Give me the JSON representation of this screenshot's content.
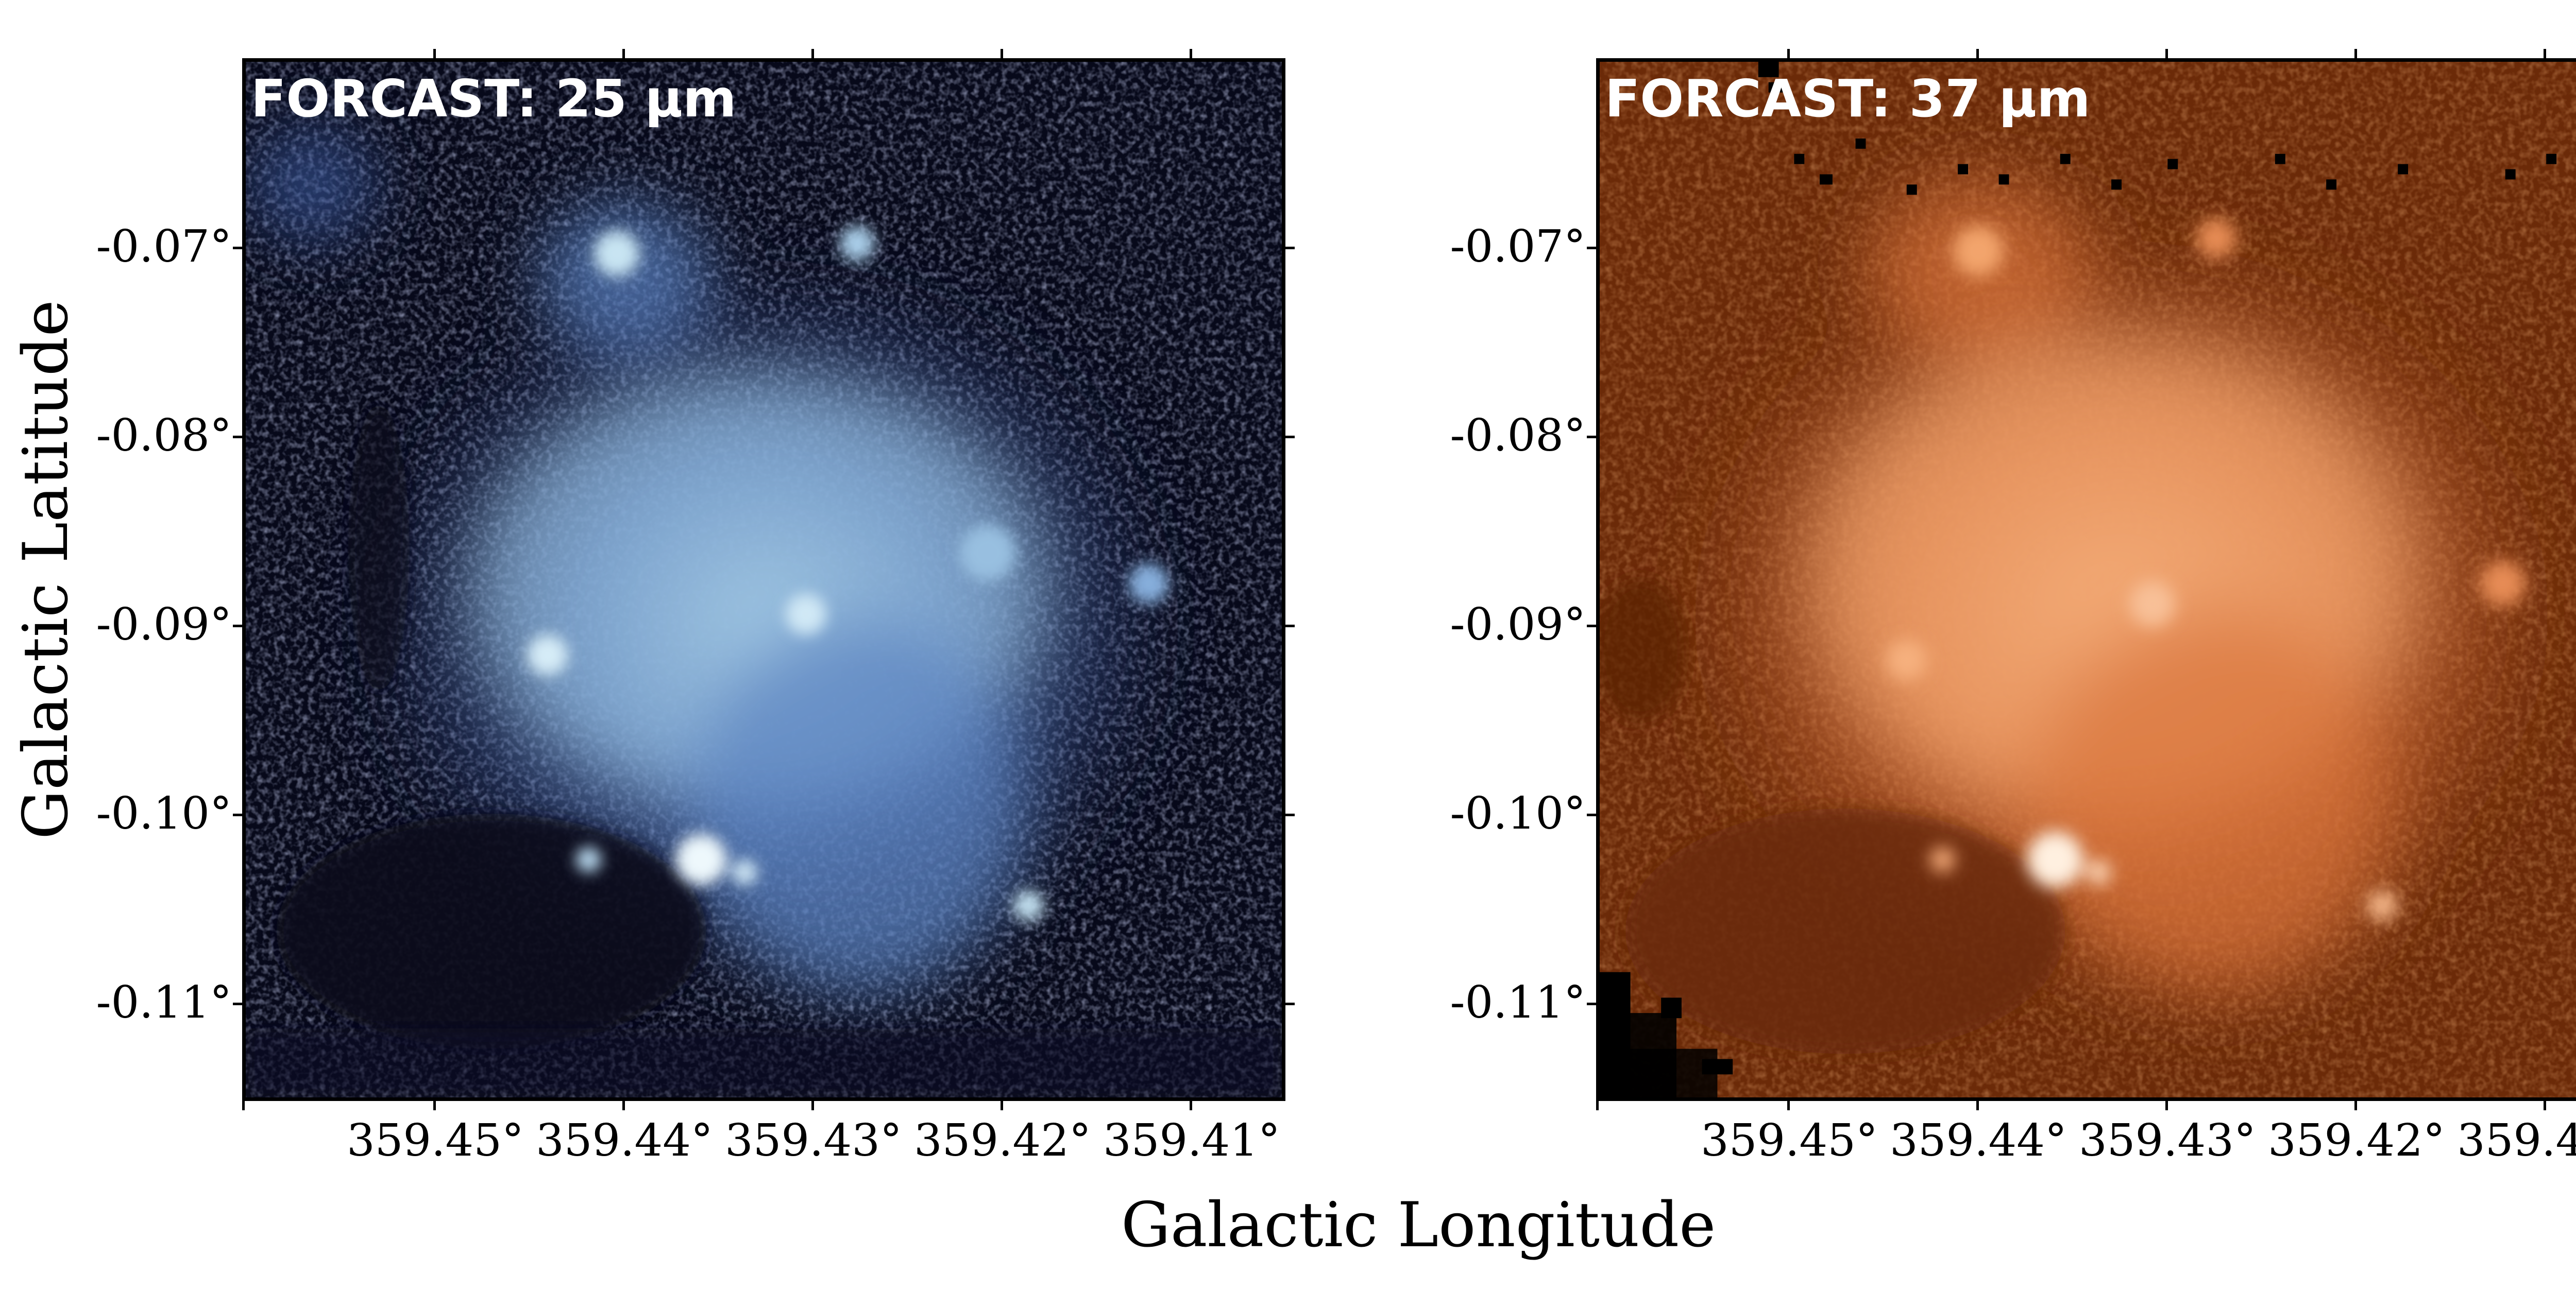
{
  "figure": {
    "x_axis_label": "Galactic Longitude",
    "y_axis_label": "Galactic Latitude",
    "x_ticks": [
      "359.45°",
      "359.44°",
      "359.43°",
      "359.42°",
      "359.41°"
    ],
    "y_ticks": [
      "-0.07°",
      "-0.08°",
      "-0.09°",
      "-0.10°",
      "-0.11°"
    ]
  },
  "panels": [
    {
      "title": "FORCAST: 25 μm",
      "colormap": "blue",
      "colors": {
        "background": "#07091a",
        "mid": "#3d5a9e",
        "bright": "#c8e4f2"
      }
    },
    {
      "title": "FORCAST: 37 μm",
      "colormap": "orange",
      "colors": {
        "background": "#6b2a08",
        "mid": "#d9733a",
        "bright": "#fff0e0"
      }
    }
  ]
}
